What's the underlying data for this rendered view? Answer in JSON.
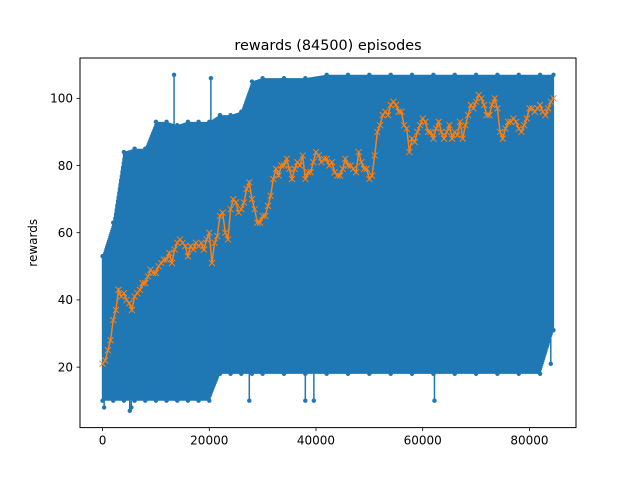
{
  "chart_data": {
    "type": "line",
    "title": "rewards (84500) episodes",
    "xlabel": "",
    "ylabel": "rewards",
    "xlim": [
      -4225,
      88725
    ],
    "ylim": [
      2,
      112
    ],
    "xticks": [
      0,
      20000,
      40000,
      60000,
      80000
    ],
    "yticks": [
      20,
      40,
      60,
      80,
      100
    ],
    "grid": false,
    "colors": {
      "raw": "#1f77b4",
      "avg": "#ff7f0e"
    },
    "series": [
      {
        "marker": "dot",
        "color": "#1f77b4",
        "band": [
          [
            0,
            10,
            53
          ],
          [
            2000,
            10,
            63
          ],
          [
            4000,
            10,
            84
          ],
          [
            6000,
            10,
            85
          ],
          [
            8000,
            10,
            85
          ],
          [
            10000,
            10,
            93
          ],
          [
            12000,
            10,
            93
          ],
          [
            14000,
            10,
            92
          ],
          [
            16000,
            10,
            93
          ],
          [
            18000,
            10,
            93
          ],
          [
            20000,
            10,
            93
          ],
          [
            22000,
            18,
            95
          ],
          [
            24000,
            18,
            95
          ],
          [
            26000,
            18,
            96
          ],
          [
            28000,
            18,
            105
          ],
          [
            30000,
            18,
            106
          ],
          [
            34000,
            18,
            106
          ],
          [
            38000,
            18,
            106
          ],
          [
            42000,
            18,
            107
          ],
          [
            46000,
            18,
            107
          ],
          [
            50000,
            18,
            107
          ],
          [
            54000,
            18,
            107
          ],
          [
            58000,
            18,
            107
          ],
          [
            62000,
            18,
            107
          ],
          [
            66000,
            18,
            107
          ],
          [
            70000,
            18,
            107
          ],
          [
            74000,
            18,
            107
          ],
          [
            78000,
            18,
            107
          ],
          [
            82000,
            18,
            107
          ],
          [
            84500,
            31,
            107
          ]
        ],
        "outliers": [
          [
            300,
            8
          ],
          [
            5100,
            7
          ],
          [
            5400,
            8
          ],
          [
            13400,
            107
          ],
          [
            20300,
            106
          ],
          [
            27500,
            10
          ],
          [
            38000,
            10
          ],
          [
            39600,
            10
          ],
          [
            62200,
            10
          ],
          [
            84000,
            21
          ]
        ]
      },
      {
        "marker": "x",
        "color": "#ff7f0e",
        "x": [
          0,
          500,
          1000,
          1500,
          2000,
          2500,
          3000,
          3500,
          4000,
          4500,
          5000,
          5500,
          6000,
          6500,
          7000,
          7500,
          8000,
          8500,
          9000,
          9500,
          10000,
          10500,
          11000,
          11500,
          12000,
          12500,
          13000,
          13500,
          14000,
          14500,
          15000,
          15500,
          16000,
          16500,
          17000,
          17500,
          18000,
          18500,
          19000,
          19500,
          20000,
          20500,
          21000,
          21500,
          22000,
          22500,
          23000,
          23500,
          24000,
          24500,
          25000,
          25500,
          26000,
          26500,
          27000,
          27500,
          28000,
          28500,
          29000,
          29500,
          30000,
          30500,
          31000,
          31500,
          32000,
          32500,
          33000,
          33500,
          34000,
          34500,
          35000,
          35500,
          36000,
          36500,
          37000,
          37500,
          38000,
          38500,
          39000,
          39500,
          40000,
          40500,
          41000,
          41500,
          42000,
          42500,
          43000,
          43500,
          44000,
          44500,
          45000,
          45500,
          46000,
          46500,
          47000,
          47500,
          48000,
          48500,
          49000,
          49500,
          50000,
          50500,
          51000,
          51500,
          52000,
          52500,
          53000,
          53500,
          54000,
          54500,
          55000,
          55500,
          56000,
          56500,
          57000,
          57500,
          58000,
          58500,
          59000,
          59500,
          60000,
          60500,
          61000,
          61500,
          62000,
          62500,
          63000,
          63500,
          64000,
          64500,
          65000,
          65500,
          66000,
          66500,
          67000,
          67500,
          68000,
          68500,
          69000,
          69500,
          70000,
          70500,
          71000,
          71500,
          72000,
          72500,
          73000,
          73500,
          74000,
          74500,
          75000,
          75500,
          76000,
          76500,
          77000,
          77500,
          78000,
          78500,
          79000,
          79500,
          80000,
          80500,
          81000,
          81500,
          82000,
          82500,
          83000,
          83500,
          84000,
          84500
        ],
        "y": [
          21,
          22,
          25,
          28,
          34,
          37,
          43,
          41,
          42,
          40,
          39,
          37,
          41,
          42,
          43,
          45,
          45,
          47,
          49,
          48,
          48,
          50,
          51,
          52,
          52,
          54,
          51,
          55,
          57,
          58,
          57,
          56,
          53,
          56,
          55,
          57,
          56,
          57,
          55,
          58,
          60,
          51,
          57,
          59,
          65,
          66,
          60,
          58,
          67,
          70,
          69,
          66,
          67,
          69,
          73,
          75,
          70,
          67,
          63,
          63,
          65,
          65,
          68,
          71,
          76,
          79,
          77,
          80,
          80,
          82,
          79,
          76,
          79,
          81,
          80,
          83,
          76,
          78,
          78,
          81,
          84,
          83,
          81,
          82,
          82,
          80,
          81,
          78,
          77,
          77,
          79,
          82,
          80,
          80,
          79,
          78,
          84,
          81,
          79,
          79,
          76,
          77,
          83,
          90,
          92,
          95,
          96,
          95,
          98,
          99,
          98,
          96,
          96,
          92,
          91,
          84,
          88,
          87,
          90,
          92,
          94,
          93,
          90,
          90,
          88,
          91,
          93,
          90,
          88,
          90,
          92,
          88,
          90,
          89,
          93,
          88,
          92,
          95,
          98,
          97,
          99,
          101,
          100,
          98,
          95,
          95,
          98,
          100,
          97,
          90,
          88,
          91,
          93,
          93,
          94,
          93,
          91,
          90,
          92,
          94,
          97,
          97,
          96,
          97,
          98,
          96,
          95,
          97,
          99,
          100
        ]
      }
    ]
  }
}
